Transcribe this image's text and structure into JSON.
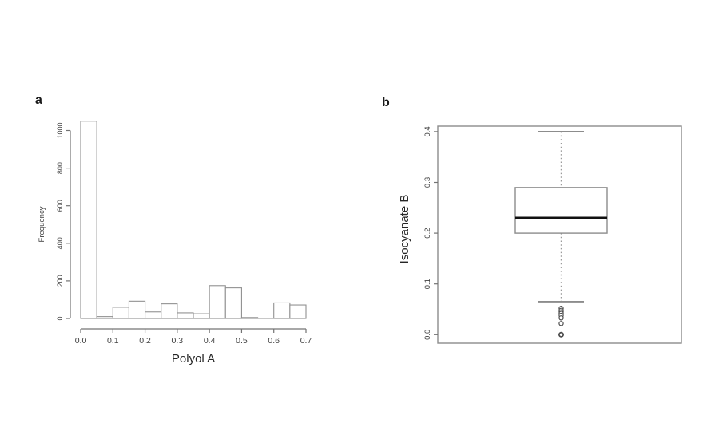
{
  "figure": {
    "panel_a_label": "a",
    "panel_b_label": "b"
  },
  "colors": {
    "background": "#ffffff",
    "axis_line": "#737373",
    "bar_stroke": "#919191",
    "bar_fill": "#ffffff",
    "tick_text": "#404040",
    "title_text": "#262626",
    "box_stroke": "#8c8c8c",
    "median_line": "#111111",
    "whisker_dotted": "#9a9a9a",
    "outlier_stroke": "#4d4d4d"
  },
  "chart_data": [
    {
      "id": "panel-a-histogram",
      "type": "bar",
      "title": "",
      "xlabel": "Polyol A",
      "ylabel": "Frequency",
      "xlim": [
        0.0,
        0.7
      ],
      "ylim": [
        0,
        1050
      ],
      "grid": false,
      "legend": "none",
      "bin_start": 0.0,
      "bin_width": 0.05,
      "x_ticks": [
        0.0,
        0.1,
        0.2,
        0.3,
        0.4,
        0.5,
        0.6,
        0.7
      ],
      "y_ticks": [
        0,
        200,
        400,
        600,
        800,
        1000
      ],
      "values": [
        1050,
        10,
        60,
        92,
        35,
        78,
        30,
        25,
        175,
        163,
        5,
        0,
        83,
        72
      ]
    },
    {
      "id": "panel-b-boxplot",
      "type": "boxplot",
      "title": "",
      "xlabel": "",
      "ylabel": "Isocyanate B",
      "ylim": [
        0.0,
        0.4
      ],
      "grid": false,
      "legend": "none",
      "y_ticks": [
        0.0,
        0.1,
        0.2,
        0.3,
        0.4
      ],
      "stats": {
        "whisker_low": 0.065,
        "q1": 0.2,
        "median": 0.23,
        "q3": 0.29,
        "whisker_high": 0.4
      },
      "outliers": [
        0.052,
        0.048,
        0.045,
        0.042,
        0.038,
        0.033,
        0.022,
        0.0
      ]
    }
  ]
}
